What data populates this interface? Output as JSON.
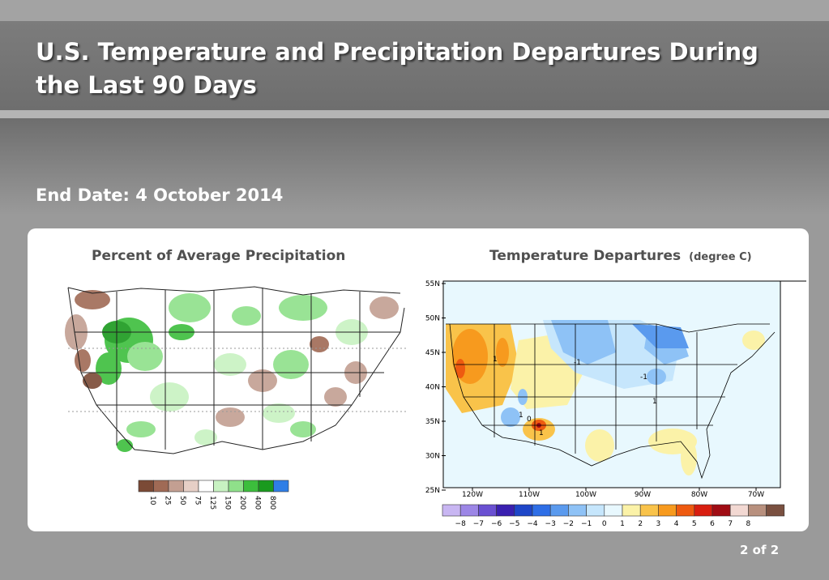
{
  "slide": {
    "title": "U.S. Temperature and Precipitation Departures During the Last 90 Days",
    "subtitle": "End Date: 4 October 2014",
    "page_indicator": "2 of 2"
  },
  "precip_map": {
    "title": "Percent of Average Precipitation",
    "legend": [
      {
        "label": "10",
        "color": "#7b4a36"
      },
      {
        "label": "25",
        "color": "#a06a55"
      },
      {
        "label": "50",
        "color": "#c39f92"
      },
      {
        "label": "75",
        "color": "#e6cfc6"
      },
      {
        "label": "125",
        "color": "#ffffff"
      },
      {
        "label": "150",
        "color": "#c8f2c2"
      },
      {
        "label": "200",
        "color": "#8fe08a"
      },
      {
        "label": "400",
        "color": "#3cbe3c"
      },
      {
        "label": "800",
        "color": "#1a9a1e"
      },
      {
        "label": "",
        "color": "#2f7ee6"
      }
    ]
  },
  "temp_map": {
    "title": "Temperature Departures",
    "unit": "(degree C)",
    "lat_labels": [
      "55N",
      "50N",
      "45N",
      "40N",
      "35N",
      "30N",
      "25N"
    ],
    "lon_labels": [
      "120W",
      "110W",
      "100W",
      "90W",
      "80W",
      "70W"
    ],
    "contour_labels": [
      "1",
      "-1",
      "-1",
      "1",
      "1",
      "1",
      "0"
    ],
    "legend": [
      {
        "label": "",
        "color": "#c8b6f2"
      },
      {
        "label": "−8",
        "color": "#9c86e6"
      },
      {
        "label": "−7",
        "color": "#6a50d2"
      },
      {
        "label": "−6",
        "color": "#3a20b0"
      },
      {
        "label": "−5",
        "color": "#1e46c8"
      },
      {
        "label": "−4",
        "color": "#2e6ee6"
      },
      {
        "label": "−3",
        "color": "#5a9aee"
      },
      {
        "label": "−2",
        "color": "#8ec2f6"
      },
      {
        "label": "−1",
        "color": "#c6e6fc"
      },
      {
        "label": "0",
        "color": "#e8f8fe"
      },
      {
        "label": "1",
        "color": "#fbf2a8"
      },
      {
        "label": "2",
        "color": "#f9c34a"
      },
      {
        "label": "3",
        "color": "#f79a1e"
      },
      {
        "label": "4",
        "color": "#ee5a10"
      },
      {
        "label": "5",
        "color": "#d81e10"
      },
      {
        "label": "6",
        "color": "#a00c14"
      },
      {
        "label": "7",
        "color": "#f2d8d2"
      },
      {
        "label": "8",
        "color": "#b8907e"
      },
      {
        "label": "",
        "color": "#7a5040"
      }
    ]
  }
}
